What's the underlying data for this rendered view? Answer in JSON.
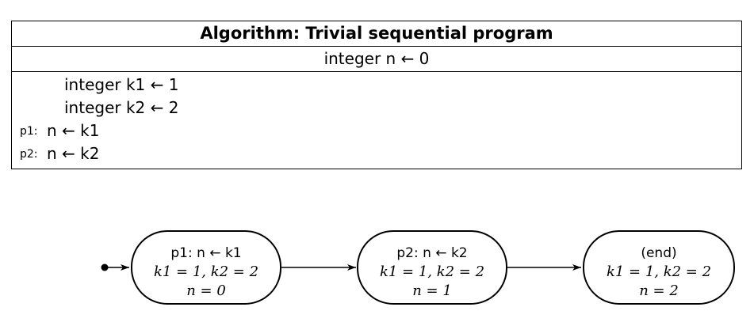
{
  "algorithm": {
    "title": "Algorithm: Trivial sequential program",
    "global_decl": "integer n ← 0",
    "lines": [
      {
        "label": "",
        "code": "integer k1 ← 1"
      },
      {
        "label": "",
        "code": "integer k2 ← 2"
      },
      {
        "label": "p1:",
        "code": "n ← k1"
      },
      {
        "label": "p2:",
        "code": "n ← k2"
      }
    ]
  },
  "states": [
    {
      "line1": "p1: n ← k1",
      "line2": "k1 = 1, k2 = 2",
      "line3": "n = 0"
    },
    {
      "line1": "p2: n ← k2",
      "line2": "k1 = 1, k2 = 2",
      "line3": "n = 1"
    },
    {
      "line1": "(end)",
      "line2": "k1 = 1, k2 = 2",
      "line3": "n = 2"
    }
  ]
}
